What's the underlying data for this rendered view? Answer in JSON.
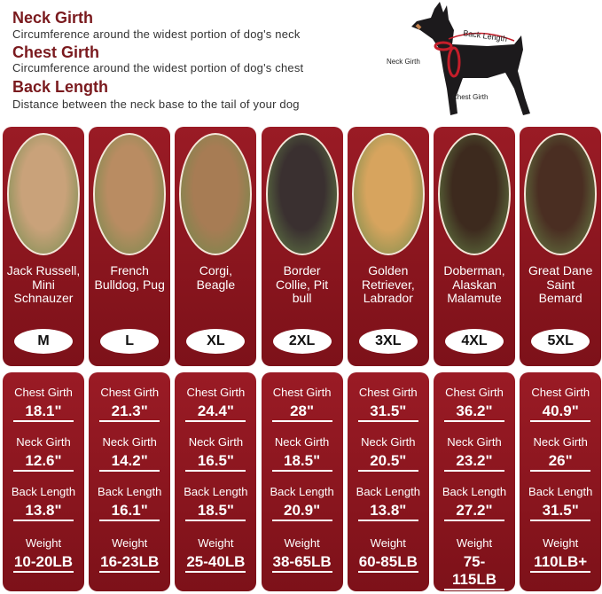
{
  "header": {
    "items": [
      {
        "title": "Neck Girth",
        "desc": "Circumference around the widest portion of dog's neck"
      },
      {
        "title": "Chest Girth",
        "desc": "Circumference around the widest portion of dog's chest"
      },
      {
        "title": "Back Length",
        "desc": "Distance between the neck base to the tail of your dog"
      }
    ]
  },
  "diagram": {
    "back": "Back Length",
    "neck": "Neck Girth",
    "chest": "Chest Girth"
  },
  "labels": {
    "chest": "Chest Girth",
    "neck": "Neck Girth",
    "back": "Back Length",
    "weight": "Weight"
  },
  "sizes": [
    {
      "breed": "Jack Russell, Mini Schnauzer",
      "size": "M",
      "chest": "18.1\"",
      "neck": "12.6\"",
      "back": "13.8\"",
      "weight": "10-20LB"
    },
    {
      "breed": "French Bulldog, Pug",
      "size": "L",
      "chest": "21.3\"",
      "neck": "14.2\"",
      "back": "16.1\"",
      "weight": "16-23LB"
    },
    {
      "breed": "Corgi, Beagle",
      "size": "XL",
      "chest": "24.4\"",
      "neck": "16.5\"",
      "back": "18.5\"",
      "weight": "25-40LB"
    },
    {
      "breed": "Border Collie, Pit bull",
      "size": "2XL",
      "chest": "28\"",
      "neck": "18.5\"",
      "back": "20.9\"",
      "weight": "38-65LB"
    },
    {
      "breed": "Golden Retriever, Labrador",
      "size": "3XL",
      "chest": "31.5\"",
      "neck": "20.5\"",
      "back": "13.8\"",
      "weight": "60-85LB"
    },
    {
      "breed": "Doberman, Alaskan Malamute",
      "size": "4XL",
      "chest": "36.2\"",
      "neck": "23.2\"",
      "back": "27.2\"",
      "weight": "75-115LB"
    },
    {
      "breed": "Great Dane Saint Bemard",
      "size": "5XL",
      "chest": "40.9\"",
      "neck": "26\"",
      "back": "31.5\"",
      "weight": "110LB+"
    }
  ]
}
